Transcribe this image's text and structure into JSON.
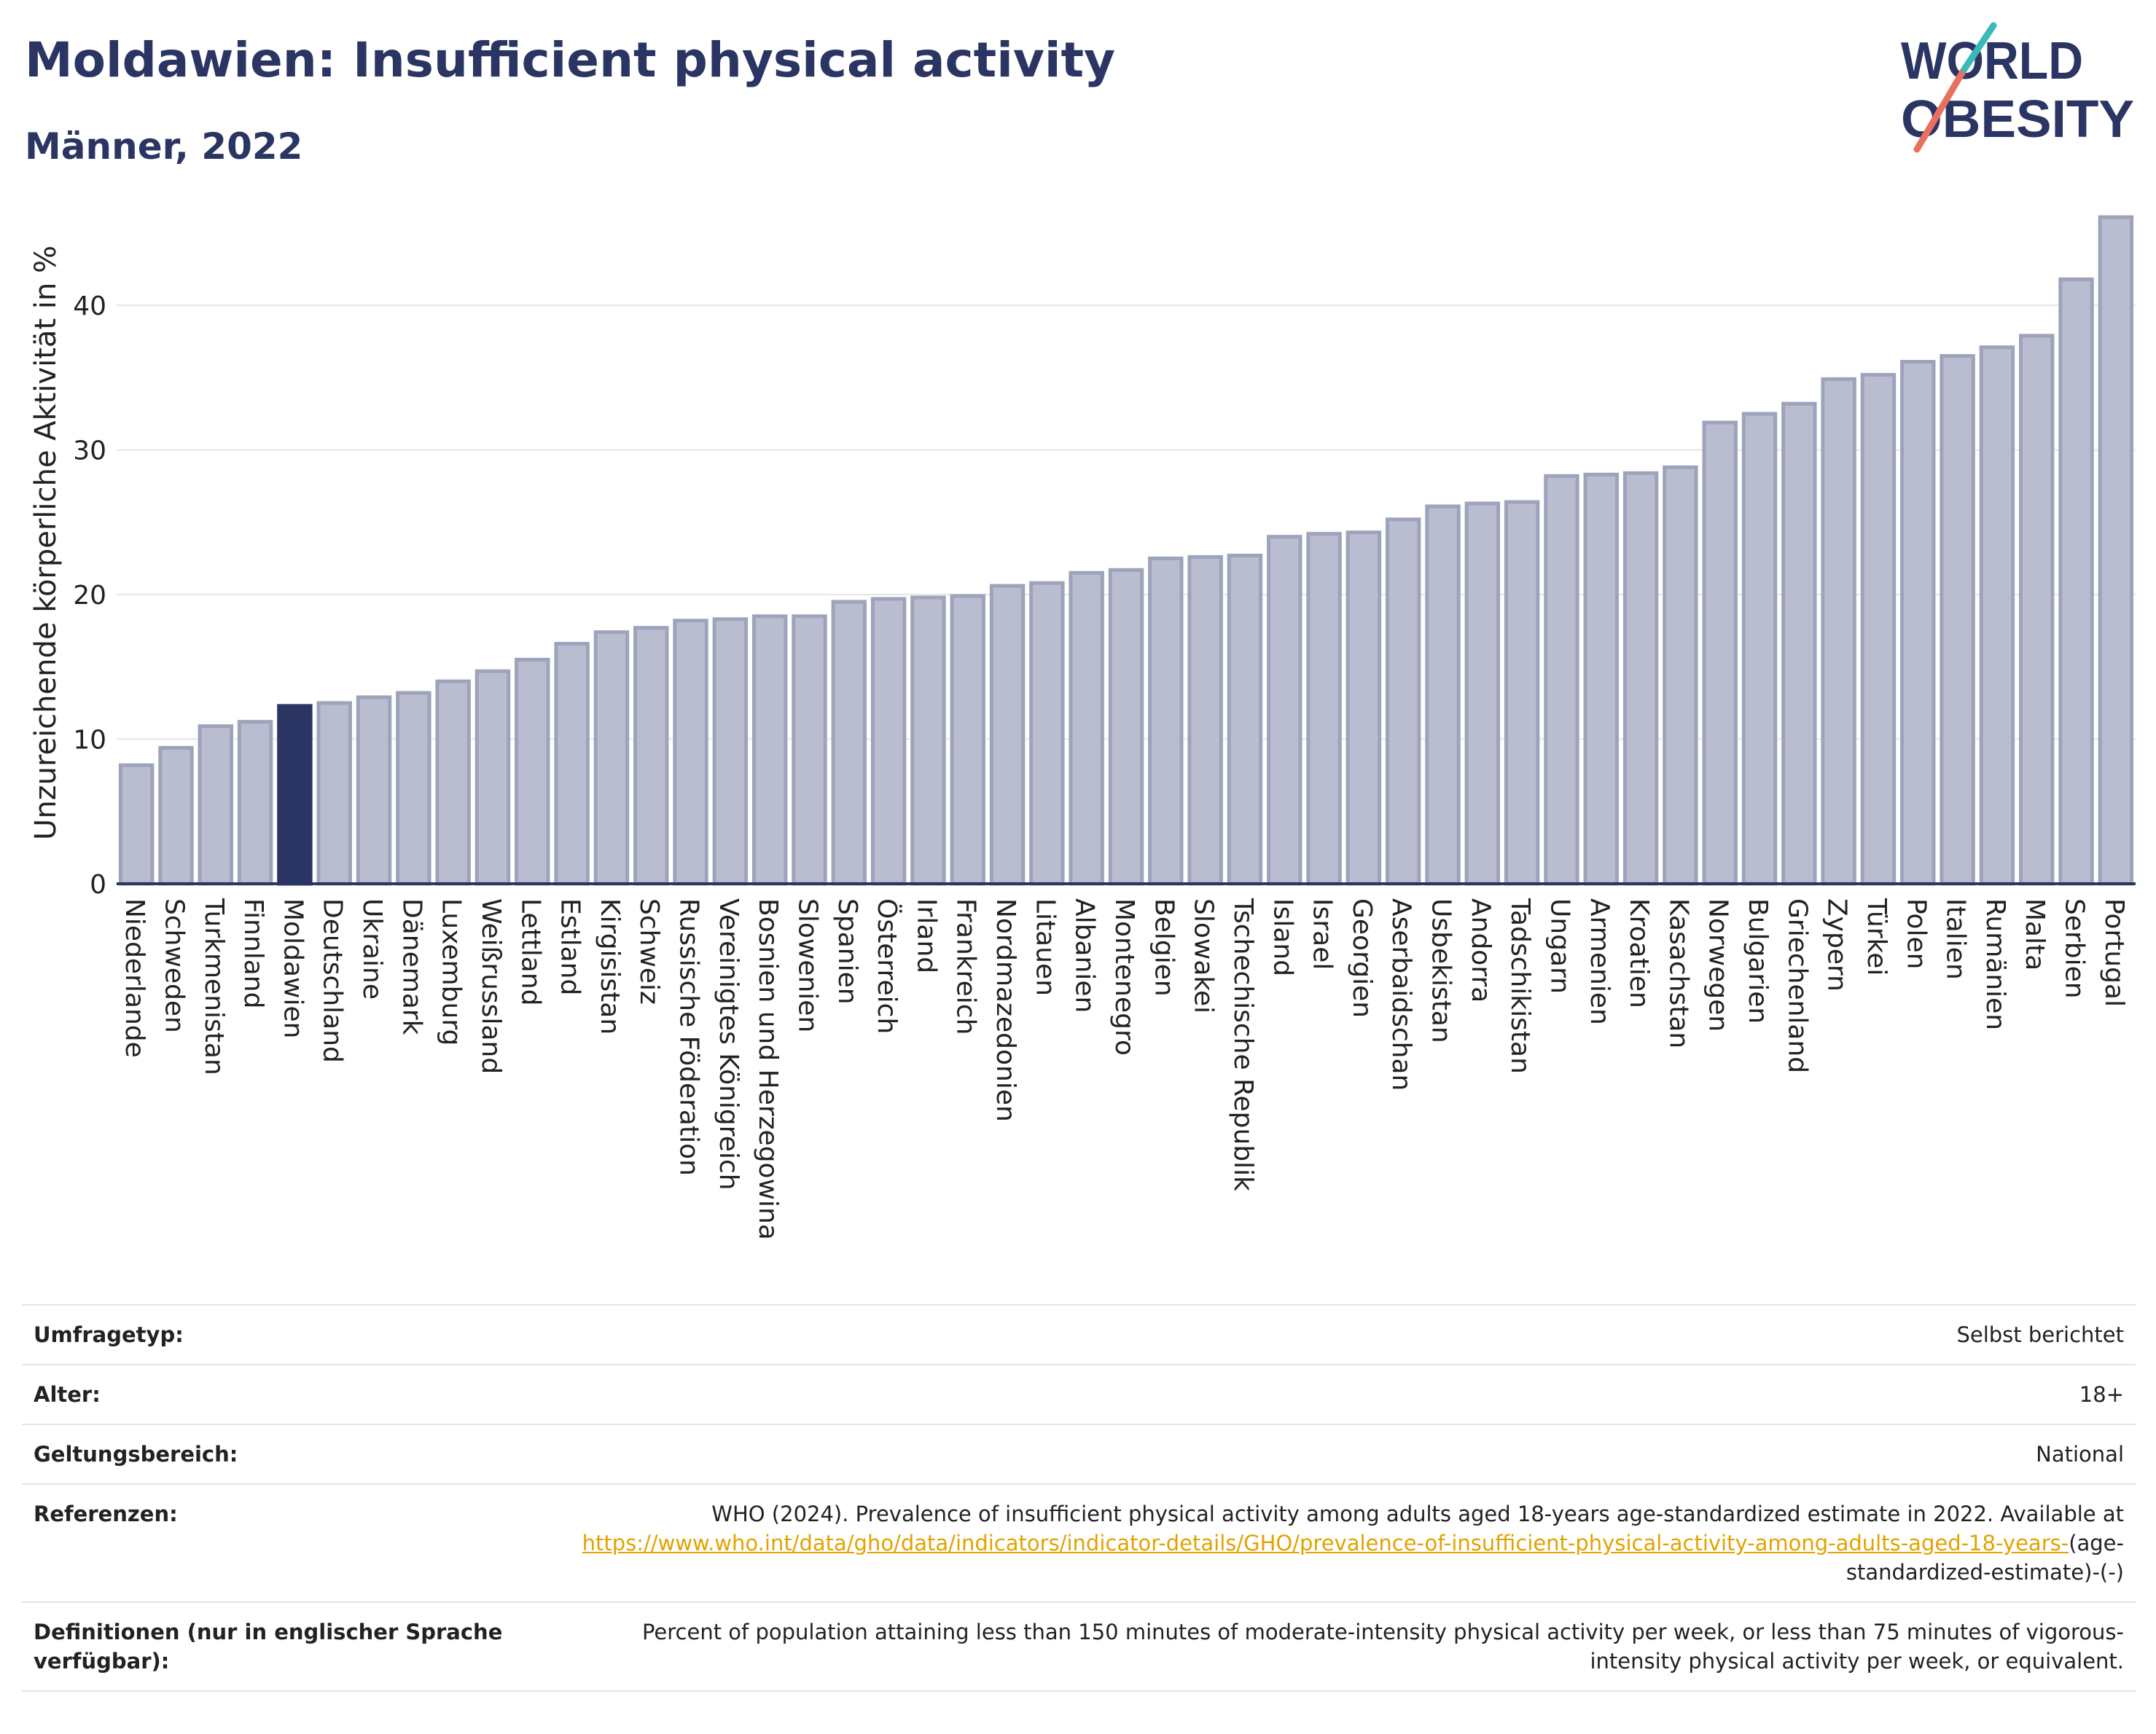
{
  "header": {
    "title": "Moldawien: Insufficient physical activity",
    "subtitle": "Männer, 2022"
  },
  "logo": {
    "line1": "WORLD",
    "line2": "OBESITY"
  },
  "chart_data": {
    "type": "bar",
    "ylabel": "Unzureichende körperliche Aktivität in %",
    "xlabel": "",
    "ylim": [
      0,
      46
    ],
    "yticks": [
      0,
      10,
      20,
      30,
      40
    ],
    "grid": true,
    "highlight": "Moldawien",
    "colors": {
      "bar": "#b9bdcf",
      "bar_edge": "#9ea3bc",
      "highlight": "#2b3563",
      "axis": "#2b3563",
      "grid": "#e6e6e6"
    },
    "categories": [
      "Niederlande",
      "Schweden",
      "Turkmenistan",
      "Finnland",
      "Moldawien",
      "Deutschland",
      "Ukraine",
      "Dänemark",
      "Luxemburg",
      "Weißrussland",
      "Lettland",
      "Estland",
      "Kirgisistan",
      "Schweiz",
      "Russische Föderation",
      "Vereinigtes Königreich",
      "Bosnien und Herzegowina",
      "Slowenien",
      "Spanien",
      "Österreich",
      "Irland",
      "Frankreich",
      "Nordmazedonien",
      "Litauen",
      "Albanien",
      "Montenegro",
      "Belgien",
      "Slowakei",
      "Tschechische Republik",
      "Island",
      "Israel",
      "Georgien",
      "Aserbaidschan",
      "Usbekistan",
      "Andorra",
      "Tadschikistan",
      "Ungarn",
      "Armenien",
      "Kroatien",
      "Kasachstan",
      "Norwegen",
      "Bulgarien",
      "Griechenland",
      "Zypern",
      "Türkei",
      "Polen",
      "Italien",
      "Rumänien",
      "Malta",
      "Serbien",
      "Portugal"
    ],
    "values": [
      8.2,
      9.4,
      10.9,
      11.2,
      12.3,
      12.5,
      12.9,
      13.2,
      14.0,
      14.7,
      15.5,
      16.6,
      17.4,
      17.7,
      18.2,
      18.3,
      18.5,
      18.5,
      19.5,
      19.7,
      19.8,
      19.9,
      20.6,
      20.8,
      21.5,
      21.7,
      22.5,
      22.6,
      22.7,
      24.0,
      24.2,
      24.3,
      25.2,
      26.1,
      26.3,
      26.4,
      28.2,
      28.3,
      28.4,
      28.8,
      31.9,
      32.5,
      33.2,
      34.9,
      35.2,
      36.1,
      36.5,
      37.1,
      37.9,
      41.8,
      46.1
    ]
  },
  "info": {
    "rows": [
      {
        "label": "Umfragetyp:",
        "value": "Selbst berichtet"
      },
      {
        "label": "Alter:",
        "value": "18+"
      },
      {
        "label": "Geltungsbereich:",
        "value": "National"
      }
    ],
    "references": {
      "label": "Referenzen:",
      "text": "WHO (2024). Prevalence of insufficient physical activity among adults aged 18-years age-standardized estimate in 2022. Available at",
      "link": "https://www.who.int/data/gho/data/indicators/indicator-details/GHO/prevalence-of-insufficient-physical-activity-among-adults-aged-18-years-",
      "suffix": "(age-standardized-estimate)-(-)"
    },
    "definitions": {
      "label": "Definitionen (nur in englischer Sprache verfügbar):",
      "text": "Percent of population attaining less than 150 minutes of moderate-intensity physical activity per week, or less than 75 minutes of vigorous-intensity physical activity per week, or equivalent."
    }
  }
}
